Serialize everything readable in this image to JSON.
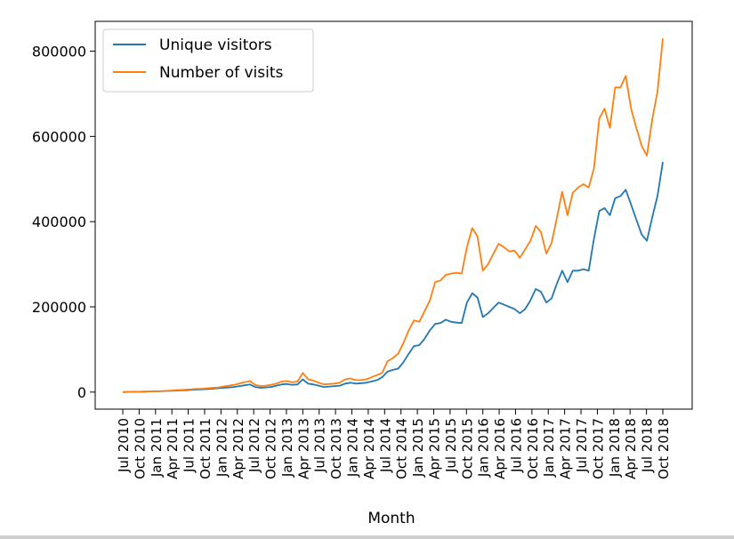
{
  "chart_data": {
    "type": "line",
    "title": "",
    "xlabel": "Month",
    "ylabel": "",
    "ylim": [
      -40000,
      870000
    ],
    "y_ticks": [
      0,
      200000,
      400000,
      600000,
      800000
    ],
    "x_tick_labels": [
      "Jul 2010",
      "Oct 2010",
      "Jan 2011",
      "Apr 2011",
      "Jul 2011",
      "Oct 2011",
      "Jan 2012",
      "Apr 2012",
      "Jul 2012",
      "Oct 2012",
      "Jan 2013",
      "Apr 2013",
      "Jul 2013",
      "Oct 2013",
      "Jan 2014",
      "Apr 2014",
      "Jul 2014",
      "Oct 2014",
      "Jan 2015",
      "Apr 2015",
      "Jul 2015",
      "Oct 2015",
      "Jan 2016",
      "Apr 2016",
      "Jul 2016",
      "Oct 2016",
      "Jan 2017",
      "Apr 2017",
      "Jul 2017",
      "Oct 2017",
      "Jan 2018",
      "Apr 2018",
      "Jul 2018",
      "Oct 2018"
    ],
    "legend": "top-left",
    "grid": false,
    "series": [
      {
        "name": "Unique visitors",
        "color": "#1f77b4",
        "values": [
          0,
          500,
          800,
          1000,
          1200,
          1500,
          1800,
          2000,
          2500,
          3000,
          3500,
          4000,
          4500,
          5000,
          6000,
          6500,
          7000,
          8000,
          9000,
          10000,
          11000,
          12000,
          14000,
          16000,
          18000,
          12000,
          10000,
          11000,
          12000,
          15000,
          18000,
          19000,
          17000,
          18000,
          30000,
          20000,
          18000,
          15000,
          12000,
          13000,
          14000,
          15000,
          20000,
          22000,
          20000,
          21000,
          22000,
          25000,
          28000,
          35000,
          48000,
          52000,
          55000,
          70000,
          90000,
          108000,
          110000,
          125000,
          145000,
          160000,
          162000,
          170000,
          165000,
          163000,
          162000,
          210000,
          232000,
          222000,
          176000,
          185000,
          198000,
          210000,
          205000,
          200000,
          195000,
          185000,
          195000,
          215000,
          242000,
          235000,
          210000,
          220000,
          255000,
          285000,
          258000,
          285000,
          285000,
          288000,
          285000,
          360000,
          425000,
          432000,
          415000,
          455000,
          460000,
          475000,
          440000,
          405000,
          370000,
          355000,
          410000,
          460000,
          540000
        ]
      },
      {
        "name": "Number of visits",
        "color": "#ff7f0e",
        "values": [
          0,
          500,
          800,
          1000,
          1200,
          1500,
          1800,
          2000,
          2800,
          3500,
          4500,
          5000,
          6000,
          6500,
          7500,
          8000,
          9000,
          10000,
          11000,
          13000,
          15000,
          17000,
          20000,
          23000,
          26000,
          17000,
          14000,
          15000,
          17000,
          20000,
          25000,
          26000,
          23000,
          25000,
          45000,
          30000,
          27000,
          22000,
          18000,
          19000,
          20000,
          22000,
          30000,
          32000,
          28000,
          28000,
          30000,
          35000,
          40000,
          45000,
          72000,
          80000,
          90000,
          115000,
          145000,
          168000,
          165000,
          190000,
          215000,
          258000,
          262000,
          275000,
          278000,
          280000,
          278000,
          340000,
          385000,
          365000,
          285000,
          300000,
          325000,
          348000,
          340000,
          330000,
          332000,
          315000,
          335000,
          355000,
          390000,
          375000,
          325000,
          350000,
          410000,
          470000,
          415000,
          468000,
          480000,
          488000,
          480000,
          525000,
          642000,
          665000,
          620000,
          715000,
          715000,
          742000,
          665000,
          620000,
          578000,
          555000,
          640000,
          705000,
          830000
        ]
      }
    ]
  }
}
